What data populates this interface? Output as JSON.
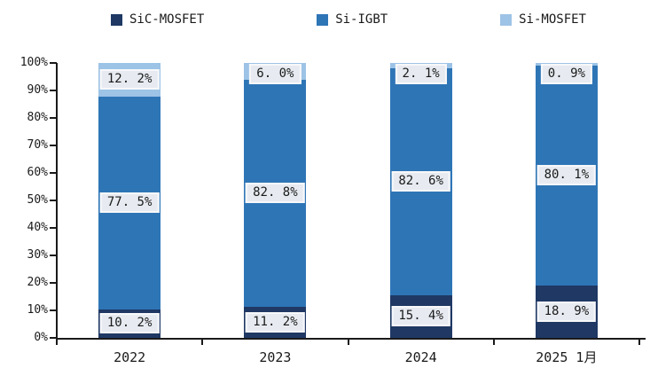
{
  "chart_data": {
    "type": "bar",
    "subtype": "stacked-100-percent",
    "title": "",
    "categories": [
      "2022",
      "2023",
      "2024",
      "2025 1月"
    ],
    "series": [
      {
        "name": "SiC-MOSFET",
        "color": "#1F3864",
        "values": [
          10.2,
          11.2,
          15.4,
          18.9
        ],
        "labels": [
          "10. 2%",
          "11. 2%",
          "15. 4%",
          "18. 9%"
        ]
      },
      {
        "name": "Si-IGBT",
        "color": "#2E75B6",
        "values": [
          77.5,
          82.8,
          82.6,
          80.1
        ],
        "labels": [
          "77. 5%",
          "82. 8%",
          "82. 6%",
          "80. 1%"
        ]
      },
      {
        "name": "Si-MOSFET",
        "color": "#9DC3E6",
        "values": [
          12.2,
          6.0,
          2.1,
          0.9
        ],
        "labels": [
          "12. 2%",
          "6. 0%",
          "2. 1%",
          "0. 9%"
        ]
      }
    ],
    "y_axis": {
      "min": 0,
      "max": 100,
      "ticks": [
        "0%",
        "10%",
        "20%",
        "30%",
        "40%",
        "50%",
        "60%",
        "70%",
        "80%",
        "90%",
        "100%"
      ],
      "grid": false
    },
    "legend_position": "top",
    "axis_color": "#1a1a1a",
    "label_box": {
      "fill": "#E7EBF1",
      "border": "#F7F8FA",
      "text_color": "#1a1a1a"
    }
  }
}
